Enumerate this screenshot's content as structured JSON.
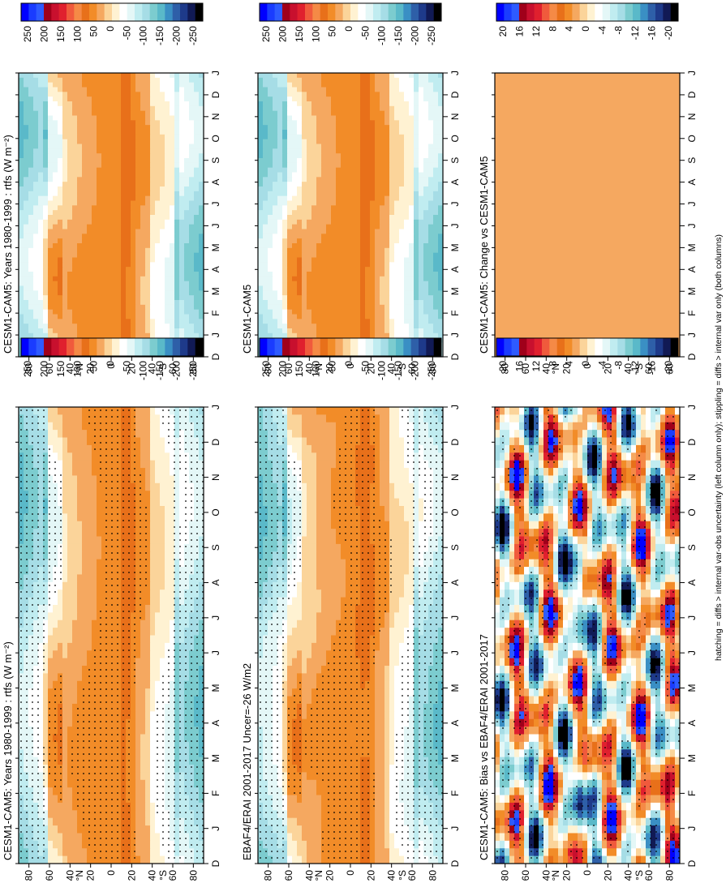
{
  "figure": {
    "footnote": "hatching = diffs > internal var-obs uncertainty (left column only); stippling = diffs > internal var only (both columns)"
  },
  "chart_data": [
    {
      "type": "heatmap",
      "title": "CESM1-CAM5: Years 1980-1999 : rtfs (W m⁻²)",
      "month_ticks": [
        "D",
        "J",
        "F",
        "M",
        "A",
        "M",
        "J",
        "J",
        "A",
        "S",
        "O",
        "N",
        "D",
        "J"
      ],
      "lat_ticks": [
        "80",
        "60",
        "40",
        "20",
        "0",
        "20",
        "40",
        "60",
        "80"
      ],
      "lat_hemi_labels": [
        "N",
        "S"
      ],
      "colorbar_ticks": [
        "250",
        "200",
        "150",
        "100",
        "50",
        "0",
        "-50",
        "-100",
        "-150",
        "-200",
        "-250"
      ],
      "palette": "rtfs",
      "field": "clim",
      "stippling": true
    },
    {
      "type": "heatmap",
      "title": "CESM1-CAM5: Years 1980-1999 : rtfs (W m⁻²)",
      "month_ticks": [
        "D",
        "J",
        "F",
        "M",
        "A",
        "M",
        "J",
        "J",
        "A",
        "S",
        "O",
        "N",
        "D",
        "J"
      ],
      "lat_ticks": [
        "80",
        "60",
        "40",
        "20",
        "0",
        "20",
        "40",
        "60",
        "80"
      ],
      "lat_hemi_labels": [
        "N",
        "S"
      ],
      "colorbar_ticks": [
        "250",
        "200",
        "150",
        "100",
        "50",
        "0",
        "-50",
        "-100",
        "-150",
        "-200",
        "-250"
      ],
      "palette": "rtfs",
      "field": "clim",
      "stippling": false
    },
    {
      "type": "heatmap",
      "title": "EBAF4/ERAI 2001-2017 Uncer=-26 W/m2",
      "month_ticks": [
        "D",
        "J",
        "F",
        "M",
        "A",
        "M",
        "J",
        "J",
        "A",
        "S",
        "O",
        "N",
        "D",
        "J"
      ],
      "lat_ticks": [
        "80",
        "60",
        "40",
        "20",
        "0",
        "20",
        "40",
        "60",
        "80"
      ],
      "lat_hemi_labels": [
        "N",
        "S"
      ],
      "colorbar_ticks": [
        "250",
        "200",
        "150",
        "100",
        "50",
        "0",
        "-50",
        "-100",
        "-150",
        "-200",
        "-250"
      ],
      "palette": "rtfs",
      "field": "obs",
      "stippling": true
    },
    {
      "type": "heatmap",
      "title": "CESM1-CAM5",
      "month_ticks": [
        "D",
        "J",
        "F",
        "M",
        "A",
        "M",
        "J",
        "J",
        "A",
        "S",
        "O",
        "N",
        "D",
        "J"
      ],
      "lat_ticks": [
        "80",
        "60",
        "40",
        "20",
        "0",
        "20",
        "40",
        "60",
        "80"
      ],
      "lat_hemi_labels": [
        "N",
        "S"
      ],
      "colorbar_ticks": [
        "250",
        "200",
        "150",
        "100",
        "50",
        "0",
        "-50",
        "-100",
        "-150",
        "-200",
        "-250"
      ],
      "palette": "rtfs",
      "field": "clim",
      "stippling": false
    },
    {
      "type": "heatmap",
      "title": "CESM1-CAM5: Bias vs EBAF4/ERAI 2001-2017",
      "month_ticks": [
        "D",
        "J",
        "F",
        "M",
        "A",
        "M",
        "J",
        "J",
        "A",
        "S",
        "O",
        "N",
        "D",
        "J"
      ],
      "lat_ticks": [
        "80",
        "60",
        "40",
        "20",
        "0",
        "20",
        "40",
        "60",
        "80"
      ],
      "lat_hemi_labels": [
        "N",
        "S"
      ],
      "colorbar_ticks": [
        "20",
        "16",
        "12",
        "8",
        "4",
        "0",
        "-4",
        "-8",
        "-12",
        "-16",
        "-20"
      ],
      "palette": "diff",
      "field": "bias",
      "stippling": true
    },
    {
      "type": "heatmap",
      "title": "CESM1-CAM5: Change vs CESM1-CAM5",
      "month_ticks": [
        "D",
        "J",
        "F",
        "M",
        "A",
        "M",
        "J",
        "J",
        "A",
        "S",
        "O",
        "N",
        "D",
        "J"
      ],
      "lat_ticks": [
        "80",
        "60",
        "40",
        "20",
        "0",
        "20",
        "40",
        "60",
        "80"
      ],
      "lat_hemi_labels": [
        "N",
        "S"
      ],
      "colorbar_ticks": [
        "20",
        "16",
        "12",
        "8",
        "4",
        "0",
        "-4",
        "-8",
        "-12",
        "-16",
        "-20"
      ],
      "palette": "diff",
      "field": "zero",
      "stippling": false
    }
  ],
  "palettes": {
    "rtfs": [
      "#0000ff",
      "#1a3cff",
      "#2e5bff",
      "#a0001a",
      "#c8102e",
      "#e0202e",
      "#f05a3c",
      "#f58a46",
      "#e8701a",
      "#f28c28",
      "#f5a860",
      "#fbd49a",
      "#fff2d2",
      "#ffffff",
      "#e4f7f7",
      "#c0ecf0",
      "#a6dde6",
      "#7ccccf",
      "#5ab9c9",
      "#3a8fc4",
      "#2e5fa8",
      "#1e3a8a",
      "#111a55",
      "#000000"
    ],
    "diff": [
      "#0000ff",
      "#1a3cff",
      "#2e5bff",
      "#a0001a",
      "#c8102e",
      "#e0202e",
      "#f05a3c",
      "#f58a46",
      "#e8701a",
      "#f28c28",
      "#f5a860",
      "#fbd49a",
      "#fff2d2",
      "#ffffff",
      "#e4f7f7",
      "#c0ecf0",
      "#a6dde6",
      "#7ccccf",
      "#5ab9c9",
      "#3a8fc4",
      "#2e5fa8",
      "#1e3a8a",
      "#111a55",
      "#000000"
    ]
  }
}
